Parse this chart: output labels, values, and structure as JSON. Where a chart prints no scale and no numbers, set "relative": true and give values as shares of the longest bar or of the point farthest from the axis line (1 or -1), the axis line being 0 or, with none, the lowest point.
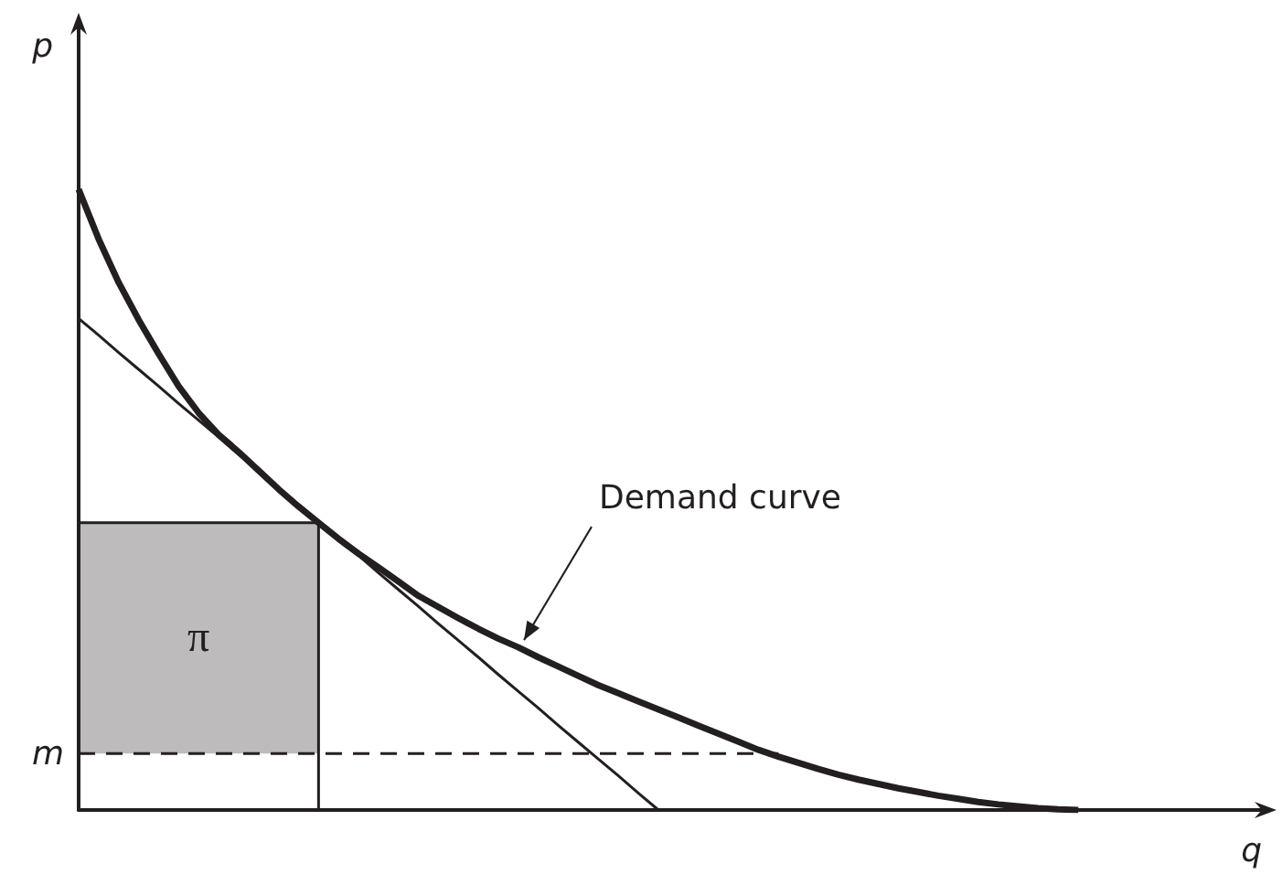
{
  "chart_data": {
    "type": "line",
    "relative": true,
    "xlabel": "q",
    "ylabel": "p",
    "marker": "none",
    "categories": [
      null,
      null,
      null,
      null,
      null,
      null,
      null,
      null,
      null,
      null,
      null,
      null,
      null,
      null,
      null,
      null,
      null,
      null,
      null,
      null,
      null,
      null,
      null,
      null,
      null,
      null,
      null,
      null,
      null,
      null,
      null,
      null,
      null,
      null,
      null,
      null,
      null,
      null,
      null,
      null,
      null,
      null,
      null,
      null,
      null,
      null,
      null,
      null,
      null,
      null,
      null,
      null,
      null,
      null,
      null,
      null,
      null,
      null,
      null,
      null
    ],
    "annotations": [
      "Demand curve",
      "π",
      "m"
    ],
    "series": [
      {
        "color": "#231f20",
        "values": [
          1,
          0.92,
          0.85,
          0.79,
          0.735,
          0.683,
          0.64,
          0.605,
          0.577,
          0.547,
          0.517,
          0.489,
          0.463,
          0.437,
          0.413,
          0.391,
          0.368,
          0.345,
          0.327,
          0.309,
          0.292,
          0.276,
          0.262,
          0.246,
          0.231,
          0.216,
          0.201,
          0.188,
          0.175,
          0.162,
          0.149,
          0.136,
          0.123,
          0.11,
          0.097,
          0.086,
          0.076,
          0.066,
          0.057,
          0.049,
          0.042,
          0.035,
          0.029,
          0.023,
          0.018,
          0.013,
          0.009,
          0.006,
          0.003,
          0.001,
          0,
          null,
          null,
          null,
          null,
          null,
          null,
          null,
          null,
          null
        ]
      },
      {
        "color": "#231f20",
        "values": [
          0.792,
          0.765,
          0.737,
          0.71,
          0.683,
          0.655,
          0.628,
          0.601,
          0.573,
          0.546,
          0.519,
          0.492,
          0.464,
          0.437,
          0.41,
          0.382,
          0.355,
          0.328,
          0.3,
          0.273,
          0.246,
          0.218,
          0.191,
          0.164,
          0.136,
          0.109,
          0.082,
          0.055,
          0.027,
          0,
          null,
          null,
          null,
          null,
          null,
          null,
          null,
          null,
          null,
          null,
          null,
          null,
          null,
          null,
          null,
          null,
          null,
          null,
          null,
          null,
          null,
          null,
          null,
          null,
          null,
          null,
          null,
          null,
          null,
          null
        ]
      },
      {
        "color": "#231f20",
        "values": [
          0.463,
          0.463,
          0.463,
          0.463,
          0.463,
          0.463,
          0.463,
          0.463,
          0.463,
          0.463,
          0.463,
          0.463,
          0.463,
          null,
          null,
          null,
          null,
          null,
          null,
          null,
          null,
          null,
          null,
          null,
          null,
          null,
          null,
          null,
          null,
          null,
          null,
          null,
          null,
          null,
          null,
          null,
          null,
          null,
          null,
          null,
          null,
          null,
          null,
          null,
          null,
          null,
          null,
          null,
          null,
          null,
          null,
          null,
          null,
          null,
          null,
          null,
          null,
          null,
          null,
          null
        ],
        "lower": [
          0.091,
          0.091,
          0.091,
          0.091,
          0.091,
          0.091,
          0.091,
          0.091,
          0.091,
          0.091,
          0.091,
          0.091,
          0.091,
          null,
          null,
          null,
          null,
          null,
          null,
          null,
          null,
          null,
          null,
          null,
          null,
          null,
          null,
          null,
          null,
          null,
          null,
          null,
          null,
          null,
          null,
          null,
          null,
          null,
          null,
          null,
          null,
          null,
          null,
          null,
          null,
          null,
          null,
          null,
          null,
          null,
          null,
          null,
          null,
          null,
          null,
          null,
          null,
          null,
          null,
          null
        ],
        "upper": [
          0.463,
          0.463,
          0.463,
          0.463,
          0.463,
          0.463,
          0.463,
          0.463,
          0.463,
          0.463,
          0.463,
          0.463,
          0.463,
          null,
          null,
          null,
          null,
          null,
          null,
          null,
          null,
          null,
          null,
          null,
          null,
          null,
          null,
          null,
          null,
          null,
          null,
          null,
          null,
          null,
          null,
          null,
          null,
          null,
          null,
          null,
          null,
          null,
          null,
          null,
          null,
          null,
          null,
          null,
          null,
          null,
          null,
          null,
          null,
          null,
          null,
          null,
          null,
          null,
          null,
          null
        ]
      },
      {
        "color": "#231f20",
        "line_style": "dashed",
        "values": [
          0.091,
          0.091,
          0.091,
          0.091,
          0.091,
          0.091,
          0.091,
          0.091,
          0.091,
          0.091,
          0.091,
          0.091,
          0.091,
          0.091,
          0.091,
          0.091,
          0.091,
          0.091,
          0.091,
          0.091,
          0.091,
          0.091,
          0.091,
          0.091,
          0.091,
          0.091,
          0.091,
          0.091,
          0.091,
          0.091,
          0.091,
          0.091,
          0.091,
          0.091,
          0.091,
          0.091,
          null,
          null,
          null,
          null,
          null,
          null,
          null,
          null,
          null,
          null,
          null,
          null,
          null,
          null,
          null,
          null,
          null,
          null,
          null,
          null,
          null,
          null,
          null,
          null
        ]
      }
    ]
  }
}
